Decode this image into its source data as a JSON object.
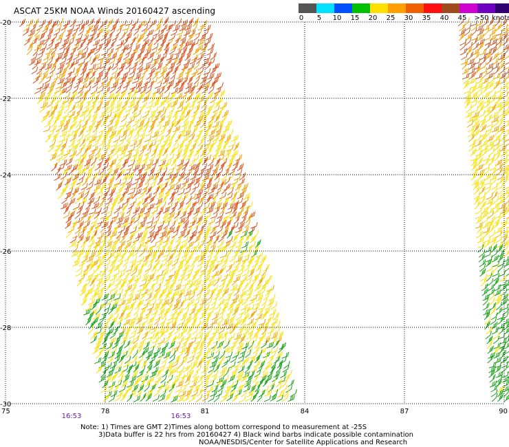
{
  "title": "ASCAT 25KM NOAA Winds 20160427 ascending",
  "legend": {
    "colors": [
      "#555555",
      "#00e0ff",
      "#0050ff",
      "#00c000",
      "#ffe000",
      "#ffa000",
      "#f06000",
      "#ff1010",
      "#a04a20",
      "#d000d0",
      "#7000c0",
      "#300070"
    ],
    "labels": [
      "0",
      "5",
      "10",
      "15",
      "20",
      "25",
      "30",
      "35",
      "40",
      "45",
      ">50"
    ],
    "unit": "knots"
  },
  "axes": {
    "lon_ticks": [
      "75",
      "78",
      "81",
      "84",
      "87",
      "90"
    ],
    "lat_ticks": [
      "-20",
      "-22",
      "-24",
      "-26",
      "-28",
      "-30"
    ],
    "lon_range": [
      75,
      90
    ],
    "lat_range": [
      -30,
      -20
    ]
  },
  "times": [
    "16:53",
    "16:53"
  ],
  "notes": [
    "Note: 1) Times are GMT 2)Times along bottom correspond to measurement at -25S",
    "3)Data buffer is 22 hrs from 20160427 4) Black wind barbs indicate possible contamination",
    "NOAA/NESDIS/Center for Satellite Applications and Research"
  ],
  "barb_colors": {
    "green": "#11a011",
    "yellow": "#f8e000",
    "orange": "#f0a000",
    "dark_orange": "#d8501a",
    "brown": "#c05a2a"
  }
}
